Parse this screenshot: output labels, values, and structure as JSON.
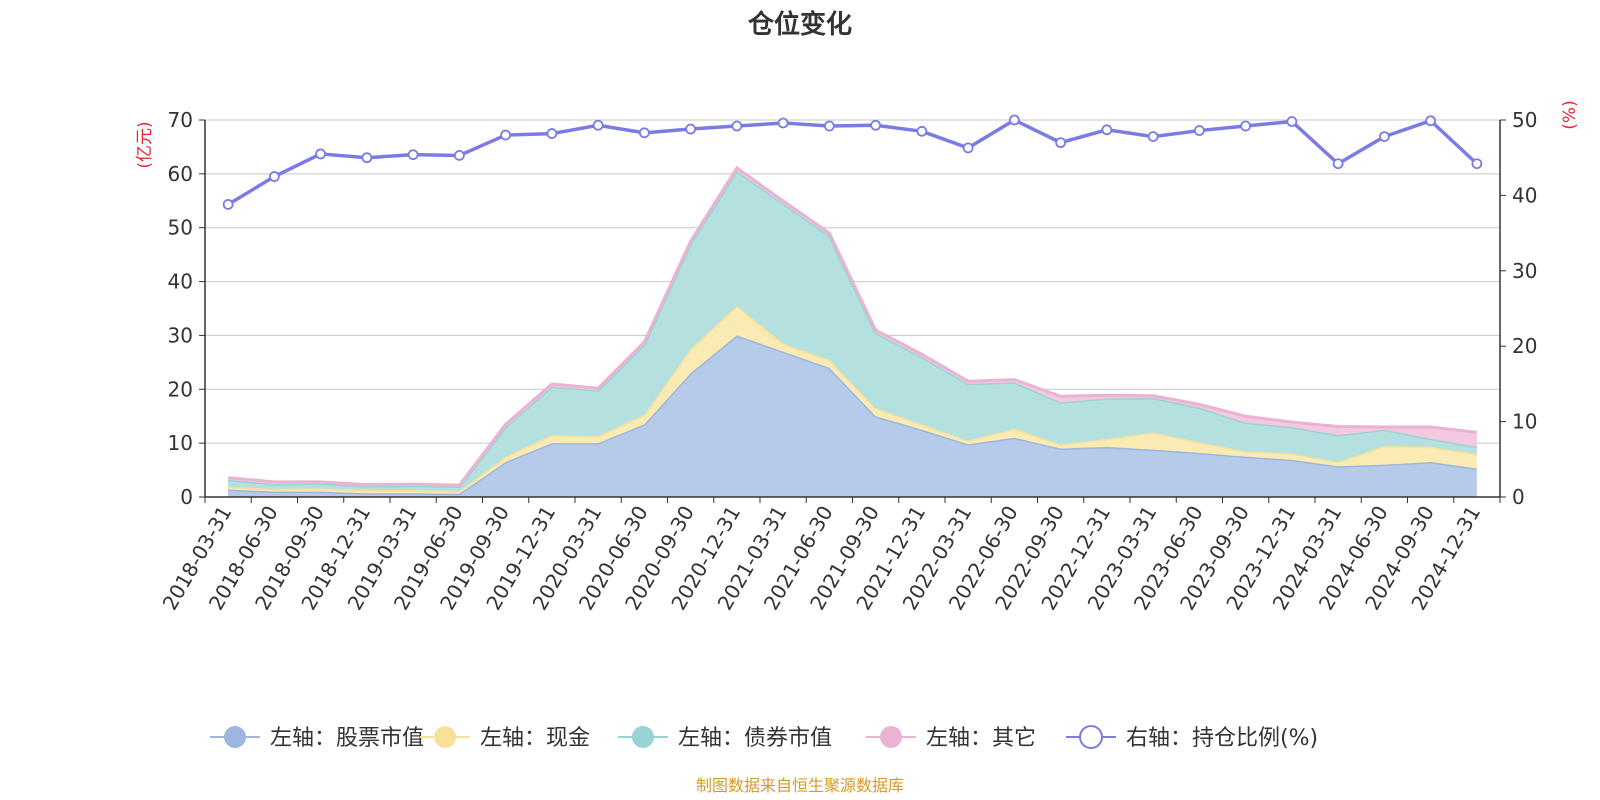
{
  "chart_data": {
    "type": "area",
    "title": "仓位变化",
    "source_note": "制图数据来自恒生聚源数据库",
    "left_axis_label": "(亿元)",
    "right_axis_label": "(%)",
    "left_ylim": [
      0,
      70
    ],
    "left_ticks": [
      0,
      10,
      20,
      30,
      40,
      50,
      60,
      70
    ],
    "right_ylim": [
      0,
      50
    ],
    "right_ticks": [
      0,
      10,
      20,
      30,
      40,
      50
    ],
    "categories": [
      "2018-03-31",
      "2018-06-30",
      "2018-09-30",
      "2018-12-31",
      "2019-03-31",
      "2019-06-30",
      "2019-09-30",
      "2019-12-31",
      "2020-03-31",
      "2020-06-30",
      "2020-09-30",
      "2020-12-31",
      "2021-03-31",
      "2021-06-30",
      "2021-09-30",
      "2021-12-31",
      "2022-03-31",
      "2022-06-30",
      "2022-09-30",
      "2022-12-31",
      "2023-03-31",
      "2023-06-30",
      "2023-09-30",
      "2023-12-31",
      "2024-03-31",
      "2024-06-30",
      "2024-09-30",
      "2024-12-31"
    ],
    "stacked_series": [
      {
        "name": "左轴：股票市值",
        "fill": "#b6cbea",
        "line": "#9db6e0",
        "values": [
          1.4,
          1.0,
          1.0,
          0.7,
          0.7,
          0.6,
          6.5,
          10.0,
          10.0,
          13.5,
          23.0,
          30.0,
          27.0,
          24.0,
          15.0,
          12.5,
          9.8,
          11.0,
          9.0,
          9.3,
          8.8,
          8.2,
          7.5,
          6.9,
          5.7,
          6.0,
          6.5,
          5.3
        ]
      },
      {
        "name": "左轴：现金",
        "fill": "#faebb5",
        "line": "#f7e19a",
        "values": [
          0.5,
          0.5,
          0.6,
          0.6,
          0.6,
          0.5,
          1.0,
          1.5,
          1.3,
          1.8,
          4.5,
          5.5,
          1.5,
          1.5,
          1.5,
          1.0,
          0.7,
          1.7,
          0.8,
          1.5,
          3.2,
          2.0,
          1.0,
          1.2,
          0.8,
          3.5,
          2.8,
          2.7
        ]
      },
      {
        "name": "左轴：债券市值",
        "fill": "#b4e1e0",
        "line": "#9ad3d3",
        "values": [
          1.3,
          0.9,
          0.9,
          0.7,
          0.8,
          0.8,
          5.5,
          9.0,
          8.5,
          13.0,
          19.5,
          25.0,
          26.0,
          23.0,
          14.0,
          12.5,
          10.5,
          8.6,
          7.8,
          7.5,
          6.4,
          6.4,
          5.3,
          4.9,
          5.0,
          3.0,
          1.5,
          1.3
        ]
      },
      {
        "name": "左轴：其它",
        "fill": "#f3c9e1",
        "line": "#eab3d3",
        "values": [
          0.4,
          0.4,
          0.3,
          0.3,
          0.3,
          0.3,
          0.5,
          0.5,
          0.4,
          0.5,
          0.5,
          0.6,
          0.5,
          0.5,
          0.5,
          0.5,
          0.5,
          0.5,
          1.1,
          0.6,
          0.4,
          0.6,
          1.2,
          0.9,
          1.6,
          0.5,
          2.2,
          2.7
        ]
      }
    ],
    "line_series": {
      "name": "右轴：持仓比例(%)",
      "color": "#7b7be6",
      "values": [
        38.8,
        42.5,
        45.5,
        45.0,
        45.4,
        45.3,
        48.0,
        48.2,
        49.3,
        48.3,
        48.8,
        49.2,
        49.6,
        49.2,
        49.3,
        48.5,
        46.3,
        50.0,
        47.0,
        48.7,
        47.8,
        48.6,
        49.2,
        49.8,
        44.2,
        47.8,
        49.9,
        44.2
      ]
    }
  }
}
